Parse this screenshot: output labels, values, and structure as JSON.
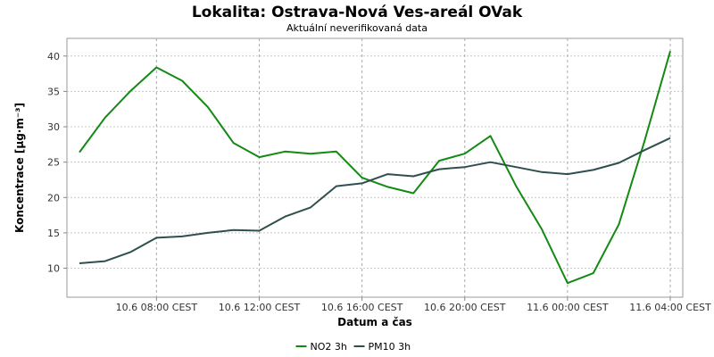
{
  "chart_data": {
    "type": "line",
    "title": "Lokalita: Ostrava-Nová Ves-areál OVak",
    "subtitle": "Aktuální neverifikovaná data",
    "xlabel": "Datum a čas",
    "ylabel": "Koncentrace [µg·m⁻³]",
    "ylim": [
      5.9,
      42.5
    ],
    "y_ticks": [
      10,
      15,
      20,
      25,
      30,
      35,
      40
    ],
    "x_ticks": [
      "10.6 08:00 CEST",
      "10.6 12:00 CEST",
      "10.6 16:00 CEST",
      "10.6 20:00 CEST",
      "11.6 00:00 CEST",
      "11.6 04:00 CEST"
    ],
    "x_times": [
      "10.6 05:00",
      "10.6 06:00",
      "10.6 07:00",
      "10.6 08:00",
      "10.6 09:00",
      "10.6 10:00",
      "10.6 11:00",
      "10.6 12:00",
      "10.6 13:00",
      "10.6 14:00",
      "10.6 15:00",
      "10.6 16:00",
      "10.6 17:00",
      "10.6 18:00",
      "10.6 19:00",
      "10.6 20:00",
      "10.6 21:00",
      "10.6 22:00",
      "10.6 23:00",
      "11.6 00:00",
      "11.6 01:00",
      "11.6 02:00",
      "11.6 03:00",
      "11.6 04:00"
    ],
    "grid": true,
    "legend_position": "bottom",
    "series": [
      {
        "name": "NO2 3h",
        "color": "#138a13",
        "values": [
          26.4,
          31.3,
          35.1,
          38.4,
          36.5,
          32.8,
          27.7,
          25.7,
          26.5,
          26.2,
          26.5,
          22.8,
          21.5,
          20.6,
          25.2,
          26.2,
          28.7,
          21.6,
          15.5,
          7.9,
          9.3,
          16.2,
          28.0,
          40.7
        ]
      },
      {
        "name": "PM10 3h",
        "color": "#2f4f4f",
        "values": [
          10.7,
          11.0,
          12.3,
          14.3,
          14.5,
          15.0,
          15.4,
          15.3,
          17.3,
          18.6,
          21.6,
          22.0,
          23.3,
          23.0,
          24.0,
          24.3,
          25.0,
          24.3,
          23.6,
          23.3,
          23.9,
          24.9,
          26.7,
          28.4
        ]
      }
    ]
  }
}
